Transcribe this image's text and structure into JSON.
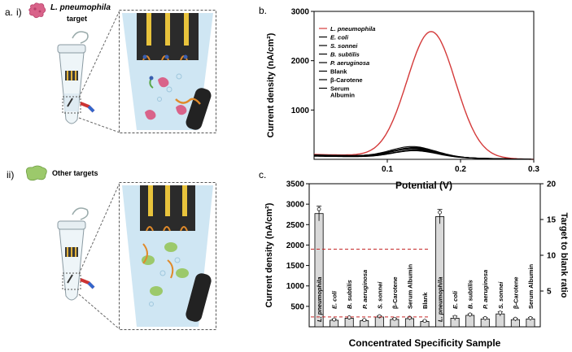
{
  "panel_a": {
    "panel_label": "a.",
    "row_i": {
      "label": "i)",
      "target_text": "L. pneumophila",
      "target_suffix": "target"
    },
    "row_ii": {
      "label": "ii)",
      "target_text": "Other targets"
    }
  },
  "panel_b": {
    "panel_label": "b.",
    "colors": {
      "target": "#d43a3a",
      "others": "#000000"
    }
  },
  "panel_c": {
    "panel_label": "c.",
    "colors": {
      "bar_fill": "#d9d9d9",
      "ratio_line": "#c62828"
    }
  },
  "chart_data": [
    {
      "type": "line",
      "xlabel": "Potential (V)",
      "ylabel": "Current density (nA/cm²)",
      "xlim": [
        0.0,
        0.3
      ],
      "ylim": [
        0,
        3000
      ],
      "x_ticks": [
        "0.1",
        "0.2",
        "0.3"
      ],
      "y_ticks": [
        "1000",
        "2000",
        "3000"
      ],
      "legend_position": "top-left",
      "legend": [
        "L. pneumophila",
        "E. coli",
        "S. sonnei",
        "B. subtilis",
        "P. aeruginosa",
        "Blank",
        "β-Carotene",
        "Serum Albumin"
      ],
      "series": [
        {
          "name": "L. pneumophila",
          "peak_x": 0.16,
          "peak_y": 2600,
          "width": 0.033,
          "baseline": 110
        },
        {
          "name": "E. coli",
          "peak_x": 0.135,
          "peak_y": 260,
          "width": 0.03,
          "baseline": 95
        },
        {
          "name": "S. sonnei",
          "peak_x": 0.138,
          "peak_y": 240,
          "width": 0.031,
          "baseline": 85
        },
        {
          "name": "B. subtilis",
          "peak_x": 0.136,
          "peak_y": 230,
          "width": 0.03,
          "baseline": 100
        },
        {
          "name": "P. aeruginosa",
          "peak_x": 0.137,
          "peak_y": 215,
          "width": 0.031,
          "baseline": 80
        },
        {
          "name": "Blank",
          "peak_x": 0.14,
          "peak_y": 195,
          "width": 0.03,
          "baseline": 70
        },
        {
          "name": "β-Carotene",
          "peak_x": 0.139,
          "peak_y": 185,
          "width": 0.031,
          "baseline": 90
        },
        {
          "name": "Serum Albumin",
          "peak_x": 0.138,
          "peak_y": 175,
          "width": 0.03,
          "baseline": 75
        }
      ]
    },
    {
      "type": "bar",
      "xlabel": "Concentrated Specificity Sample",
      "ylabel": "Current density (nA/cm²)",
      "ylabel_right": "Target to blank ratio",
      "ylim": [
        0,
        3500
      ],
      "ylim_right": [
        0,
        20
      ],
      "y_ticks": [
        "500",
        "1000",
        "1500",
        "2000",
        "2500",
        "3000",
        "3500"
      ],
      "y_ticks_right": [
        "5",
        "10",
        "15",
        "20"
      ],
      "categories": [
        "L. pneumophila",
        "E. coli",
        "B. subtilis",
        "P. aeruginosa",
        "S. sonnei",
        "β-Carotene",
        "Serum Albumin",
        "Blank",
        "L. pneumophila",
        "E. coli",
        "B. subtilis",
        "P. aeruginosa",
        "S. sonnei",
        "β-Carotene",
        "Serum Albumin"
      ],
      "series": [
        {
          "name": "Current density",
          "axis": "left",
          "values": [
            2770,
            160,
            210,
            150,
            240,
            180,
            200,
            130,
            null,
            null,
            null,
            null,
            null,
            null,
            null
          ],
          "errors": [
            180,
            30,
            30,
            25,
            30,
            25,
            35,
            25,
            null,
            null,
            null,
            null,
            null,
            null,
            null
          ]
        },
        {
          "name": "Target to blank ratio",
          "axis": "right",
          "values": [
            null,
            null,
            null,
            null,
            null,
            null,
            null,
            null,
            15.4,
            1.2,
            1.6,
            1.1,
            1.8,
            1.0,
            1.1
          ],
          "errors": [
            null,
            null,
            null,
            null,
            null,
            null,
            null,
            null,
            1.0,
            0.3,
            0.2,
            0.2,
            0.3,
            0.2,
            0.2
          ]
        }
      ],
      "reference_lines": [
        {
          "axis": "left",
          "y": 1900
        },
        {
          "axis": "left",
          "y": 240
        }
      ]
    }
  ]
}
